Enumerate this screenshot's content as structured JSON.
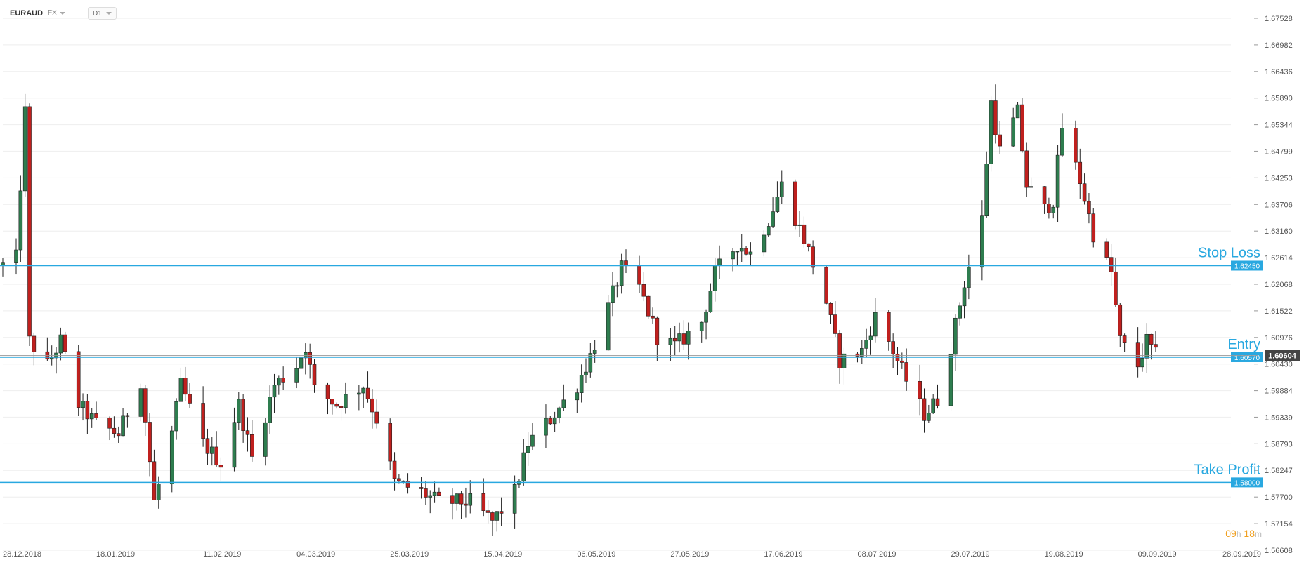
{
  "header": {
    "symbol": "EURAUD",
    "exchange": "FX",
    "timeframe": "D1"
  },
  "timer": {
    "hours": "09",
    "h_unit": "h",
    "minutes": "18",
    "m_unit": "m"
  },
  "colors": {
    "bull": "#2e7d4f",
    "bear": "#c0201e",
    "level_line": "#29a8e0",
    "grid": "#eeeeee",
    "last_price_bg": "#444444"
  },
  "chart_data": {
    "type": "candlestick",
    "symbol": "EURAUD",
    "timeframe": "D1",
    "ylim": [
      1.56608,
      1.67528
    ],
    "y_ticks": [
      "1.67528",
      "1.66982",
      "1.66436",
      "1.65890",
      "1.65344",
      "1.64799",
      "1.64253",
      "1.63706",
      "1.63160",
      "1.62614",
      "1.62068",
      "1.61522",
      "1.60976",
      "1.60430",
      "1.59884",
      "1.59339",
      "1.58793",
      "1.58247",
      "1.57700",
      "1.57154",
      "1.56608"
    ],
    "x_ticks": [
      "28.12.2018",
      "18.01.2019",
      "11.02.2019",
      "04.03.2019",
      "25.03.2019",
      "15.04.2019",
      "06.05.2019",
      "27.05.2019",
      "17.06.2019",
      "08.07.2019",
      "29.07.2019",
      "19.08.2019",
      "09.09.2019",
      "28.09.2019"
    ],
    "levels": [
      {
        "name": "Stop Loss",
        "price": 1.6245,
        "label": "1.62450"
      },
      {
        "name": "Entry",
        "price": 1.6057,
        "label": "1.60570"
      },
      {
        "name": "Take Profit",
        "price": 1.58,
        "label": "1.58000"
      }
    ],
    "last_price": {
      "price": 1.60604,
      "label": "1.60604"
    },
    "anchors": [
      [
        "2018-12-28",
        1.6245
      ],
      [
        "2018-12-31",
        1.626
      ],
      [
        "2019-01-02",
        1.656
      ],
      [
        "2019-01-03",
        1.609
      ],
      [
        "2019-01-07",
        1.604
      ],
      [
        "2019-01-10",
        1.609
      ],
      [
        "2019-01-14",
        1.596
      ],
      [
        "2019-01-18",
        1.592
      ],
      [
        "2019-01-23",
        1.59
      ],
      [
        "2019-01-28",
        1.601
      ],
      [
        "2019-01-31",
        1.576
      ],
      [
        "2019-02-04",
        1.59
      ],
      [
        "2019-02-06",
        1.6
      ],
      [
        "2019-02-11",
        1.588
      ],
      [
        "2019-02-15",
        1.584
      ],
      [
        "2019-02-19",
        1.596
      ],
      [
        "2019-02-22",
        1.585
      ],
      [
        "2019-02-27",
        1.6
      ],
      [
        "2019-03-04",
        1.604
      ],
      [
        "2019-03-06",
        1.608
      ],
      [
        "2019-03-08",
        1.599
      ],
      [
        "2019-03-13",
        1.596
      ],
      [
        "2019-03-19",
        1.6
      ],
      [
        "2019-03-22",
        1.593
      ],
      [
        "2019-03-26",
        1.58
      ],
      [
        "2019-04-01",
        1.578
      ],
      [
        "2019-04-05",
        1.576
      ],
      [
        "2019-04-12",
        1.576
      ],
      [
        "2019-04-17",
        1.572
      ],
      [
        "2019-04-22",
        1.578
      ],
      [
        "2019-04-25",
        1.588
      ],
      [
        "2019-04-30",
        1.593
      ],
      [
        "2019-05-06",
        1.6
      ],
      [
        "2019-05-09",
        1.606
      ],
      [
        "2019-05-13",
        1.616
      ],
      [
        "2019-05-16",
        1.624
      ],
      [
        "2019-05-20",
        1.62
      ],
      [
        "2019-05-24",
        1.61
      ],
      [
        "2019-05-28",
        1.608
      ],
      [
        "2019-06-03",
        1.613
      ],
      [
        "2019-06-06",
        1.623
      ],
      [
        "2019-06-11",
        1.629
      ],
      [
        "2019-06-14",
        1.627
      ],
      [
        "2019-06-18",
        1.634
      ],
      [
        "2019-06-21",
        1.641
      ],
      [
        "2019-06-26",
        1.63
      ],
      [
        "2019-07-01",
        1.617
      ],
      [
        "2019-07-04",
        1.605
      ],
      [
        "2019-07-09",
        1.607
      ],
      [
        "2019-07-12",
        1.614
      ],
      [
        "2019-07-15",
        1.609
      ],
      [
        "2019-07-19",
        1.601
      ],
      [
        "2019-07-23",
        1.594
      ],
      [
        "2019-07-26",
        1.597
      ],
      [
        "2019-07-29",
        1.608
      ],
      [
        "2019-08-01",
        1.621
      ],
      [
        "2019-08-05",
        1.634
      ],
      [
        "2019-08-07",
        1.658
      ],
      [
        "2019-08-09",
        1.648
      ],
      [
        "2019-08-13",
        1.656
      ],
      [
        "2019-08-15",
        1.641
      ],
      [
        "2019-08-19",
        1.636
      ],
      [
        "2019-08-21",
        1.638
      ],
      [
        "2019-08-23",
        1.653
      ],
      [
        "2019-08-27",
        1.642
      ],
      [
        "2019-08-30",
        1.631
      ],
      [
        "2019-09-03",
        1.623
      ],
      [
        "2019-09-05",
        1.609
      ],
      [
        "2019-09-09",
        1.604
      ],
      [
        "2019-09-11",
        1.609
      ],
      [
        "2019-09-13",
        1.606
      ]
    ]
  }
}
